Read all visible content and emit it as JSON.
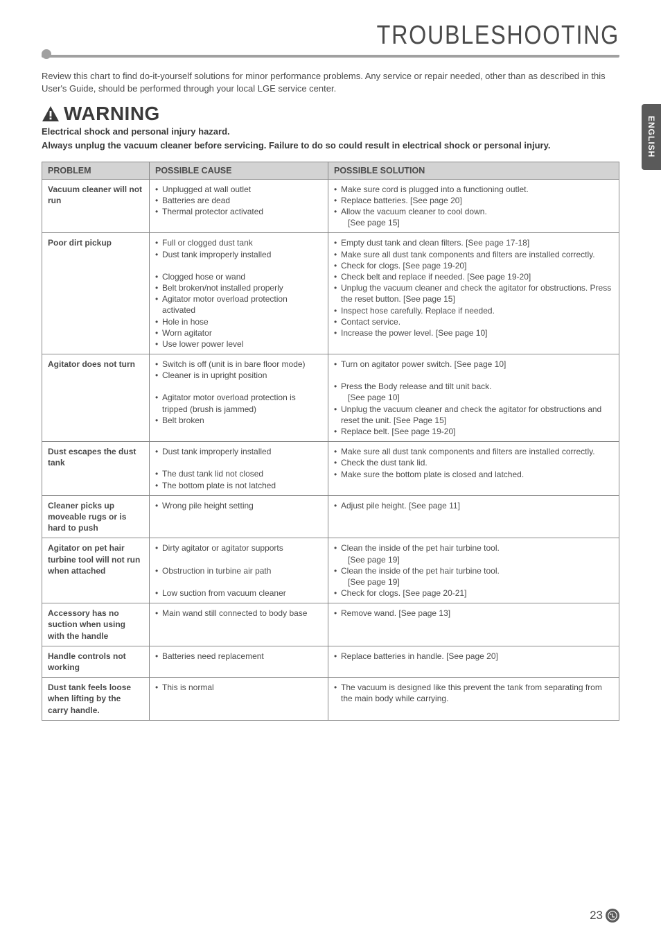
{
  "page": {
    "title": "TROUBLESHOOTING",
    "side_tab": "ENGLISH",
    "page_number": "23",
    "colors": {
      "text": "#4a4a4a",
      "header_rule": "#a0a0a0",
      "tab_bg": "#5a5a5a",
      "tab_text": "#ffffff",
      "table_border": "#888888",
      "table_header_bg": "#d3d3d3"
    }
  },
  "intro": "Review this chart to find do-it-yourself solutions for minor performance problems.\nAny service or repair needed, other than as described in this User's Guide, should be performed through your local LGE service center.",
  "warning": {
    "label": "WARNING",
    "sub": "Electrical shock and personal injury hazard.",
    "body": "Always unplug the vacuum cleaner before servicing. Failure to do so could result in electrical shock or personal injury."
  },
  "table": {
    "headers": {
      "problem": "PROBLEM",
      "cause": "POSSIBLE CAUSE",
      "solution": "POSSIBLE SOLUTION"
    },
    "rows": [
      {
        "problem": "Vacuum cleaner will not run",
        "causes": [
          "Unplugged at wall outlet",
          "Batteries are dead",
          "Thermal protector activated"
        ],
        "solutions": [
          "Make sure cord is plugged into a functioning outlet.",
          "Replace batteries. [See page 20]",
          "Allow the vacuum cleaner to cool down.\n[See page 15]"
        ]
      },
      {
        "problem": "Poor dirt pickup",
        "causes": [
          "Full or clogged dust tank",
          "Dust tank improperly installed",
          "",
          "Clogged hose or wand",
          "Belt broken/not installed properly",
          "Agitator motor overload protection activated",
          "Hole in hose",
          "Worn agitator",
          "Use lower power level"
        ],
        "solutions": [
          "Empty dust tank and clean filters. [See page 17-18]",
          "Make sure all dust tank components and filters are installed correctly.",
          "Check for clogs. [See page 19-20]",
          "Check belt and replace if needed. [See page 19-20]",
          "Unplug the vacuum cleaner and check the agitator for obstructions. Press the reset button. [See page 15]",
          "Inspect hose carefully. Replace if needed.",
          "Contact service.",
          "Increase the power level. [See page 10]"
        ]
      },
      {
        "problem": "Agitator does not turn",
        "causes": [
          "Switch is off (unit is in bare floor mode)",
          "Cleaner is in upright position",
          "",
          "Agitator motor overload protection is tripped (brush is jammed)",
          "Belt broken"
        ],
        "solutions": [
          "Turn on agitator power switch. [See page 10]",
          "",
          "Press the Body release and tilt unit back.\n[See page 10]",
          "Unplug the vacuum cleaner and check the agitator for obstructions and reset the unit. [See Page 15]",
          "Replace belt. [See page 19-20]"
        ]
      },
      {
        "problem": "Dust escapes the dust tank",
        "causes": [
          "Dust tank improperly installed",
          "",
          "The dust tank lid not closed",
          "The bottom plate is not latched"
        ],
        "solutions": [
          "Make sure all dust tank components and filters are installed correctly.",
          "Check the dust tank lid.",
          "Make sure the bottom plate is closed and latched."
        ]
      },
      {
        "problem": "Cleaner picks up moveable rugs or is hard to push",
        "causes": [
          "Wrong pile height setting"
        ],
        "solutions": [
          "Adjust pile height. [See page 11]"
        ]
      },
      {
        "problem": "Agitator on pet hair turbine tool will not run when attached",
        "causes": [
          "Dirty agitator or agitator supports",
          "",
          "Obstruction in turbine air path",
          "",
          "Low suction from vacuum cleaner"
        ],
        "solutions": [
          "Clean the inside of the pet hair turbine tool.\n[See page 19]",
          "Clean the inside of the pet hair turbine tool.\n[See page 19]",
          "Check for clogs. [See page 20-21]"
        ]
      },
      {
        "problem": "Accessory has no suction when using with the handle",
        "causes": [
          "Main wand still connected to body base"
        ],
        "solutions": [
          "Remove wand. [See page 13]"
        ]
      },
      {
        "problem": "Handle controls not working",
        "causes": [
          "Batteries need replacement"
        ],
        "solutions": [
          "Replace batteries in handle. [See page 20]"
        ]
      },
      {
        "problem": "Dust tank feels loose when lifting by the carry handle.",
        "causes": [
          "This is normal"
        ],
        "solutions": [
          "The vacuum is designed like this prevent the tank from separating from the main body while carrying."
        ]
      }
    ]
  }
}
